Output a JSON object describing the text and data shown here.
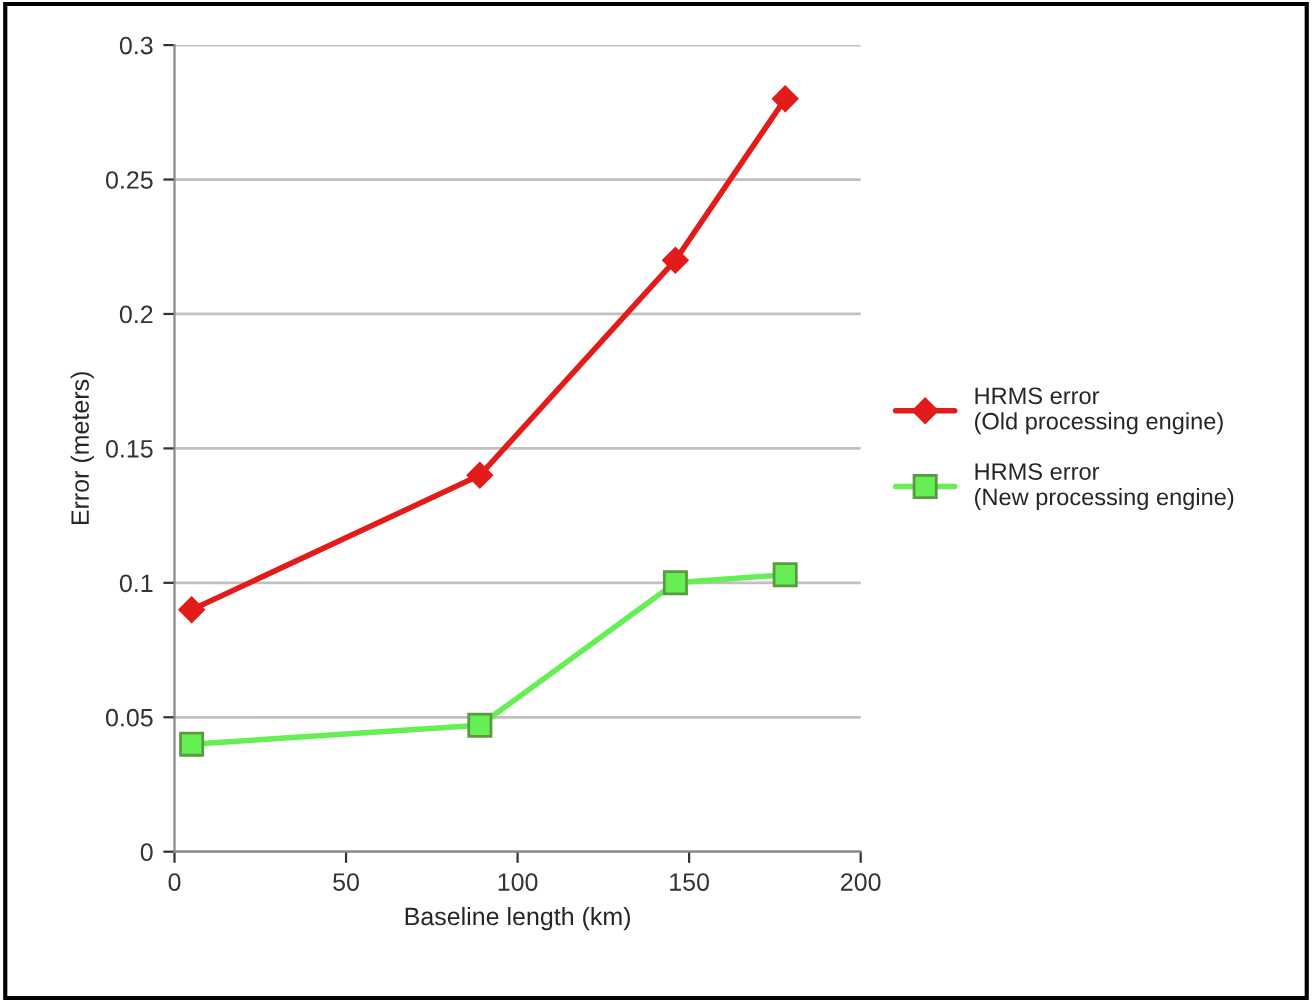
{
  "chart_data": {
    "type": "line",
    "xlabel": "Baseline length (km)",
    "ylabel": "Error (meters)",
    "x": [
      5,
      89,
      146,
      178
    ],
    "series": [
      {
        "name": "HRMS error (Old processing engine)",
        "color": "#e31b1b",
        "marker": "diamond",
        "values": [
          0.09,
          0.14,
          0.22,
          0.28
        ]
      },
      {
        "name": "HRMS error (New processing engine)",
        "color": "#66ee55",
        "marker": "square",
        "values": [
          0.04,
          0.047,
          0.1,
          0.103
        ]
      }
    ],
    "xlim": [
      0,
      200
    ],
    "xticks": [
      0,
      50,
      100,
      150,
      200
    ],
    "ylim": [
      0,
      0.3
    ],
    "yticks": [
      0,
      0.05,
      0.1,
      0.15,
      0.2,
      0.25,
      0.3
    ],
    "grid": "y",
    "legend": "right",
    "line_style": "solid"
  }
}
